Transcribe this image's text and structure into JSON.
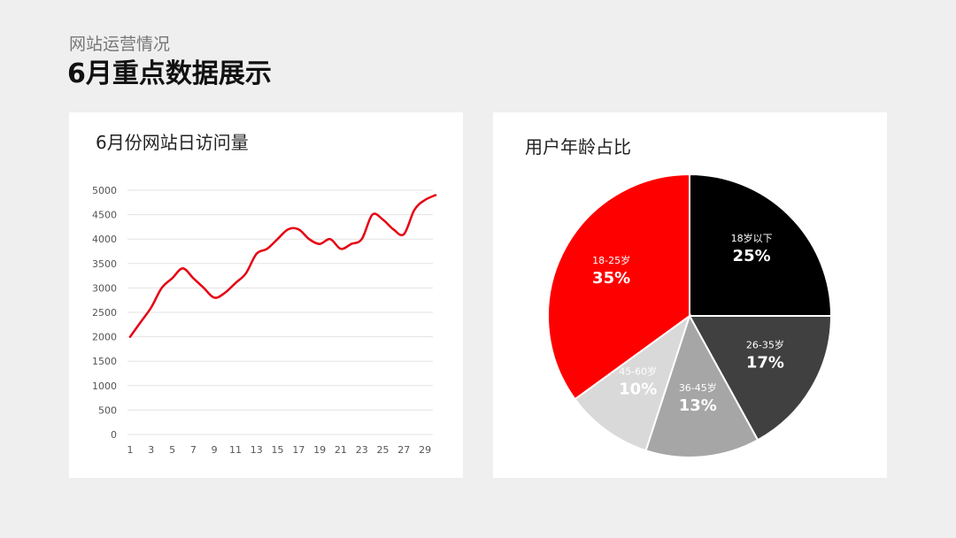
{
  "header": {
    "subtitle": "网站运营情况",
    "title": "6月重点数据展示"
  },
  "line_card": {
    "title": "6月份网站日访问量"
  },
  "pie_card": {
    "title": "用户年龄占比"
  },
  "colors": {
    "line": "#e60012",
    "grid": "#e3e3e3",
    "pie_edge": "#ffffff"
  },
  "chart_data": [
    {
      "type": "line",
      "title": "6月份网站日访问量",
      "xlabel": "",
      "ylabel": "",
      "x": [
        1,
        2,
        3,
        4,
        5,
        6,
        7,
        8,
        9,
        10,
        11,
        12,
        13,
        14,
        15,
        16,
        17,
        18,
        19,
        20,
        21,
        22,
        23,
        24,
        25,
        26,
        27,
        28,
        29,
        30
      ],
      "x_tick_labels": [
        "1",
        "3",
        "5",
        "7",
        "9",
        "11",
        "13",
        "15",
        "17",
        "19",
        "21",
        "23",
        "25",
        "27",
        "29"
      ],
      "y_tick_labels": [
        "0",
        "500",
        "1000",
        "1500",
        "2000",
        "2500",
        "3000",
        "3500",
        "4000",
        "4500",
        "5000"
      ],
      "ylim": [
        0,
        5000
      ],
      "grid": true,
      "series": [
        {
          "values": [
            2000,
            2300,
            2600,
            3000,
            3200,
            3400,
            3200,
            3000,
            2800,
            2900,
            3100,
            3300,
            3700,
            3800,
            4000,
            4200,
            4200,
            4000,
            3900,
            4000,
            3800,
            3900,
            4000,
            4500,
            4400,
            4200,
            4100,
            4600,
            4800,
            4900
          ]
        }
      ]
    },
    {
      "type": "pie",
      "title": "用户年龄占比",
      "slices": [
        {
          "label": "18岁以下",
          "value": 25,
          "display": "25%",
          "color": "#000000",
          "text_color": "#ffffff"
        },
        {
          "label": "26-35岁",
          "value": 17,
          "display": "17%",
          "color": "#404040",
          "text_color": "#ffffff"
        },
        {
          "label": "36-45岁",
          "value": 13,
          "display": "13%",
          "color": "#a6a6a6",
          "text_color": "#ffffff"
        },
        {
          "label": "45-60岁",
          "value": 10,
          "display": "10%",
          "color": "#d9d9d9",
          "text_color": "#ffffff"
        },
        {
          "label": "18-25岁",
          "value": 35,
          "display": "35%",
          "color": "#ff0000",
          "text_color": "#ffffff"
        }
      ]
    }
  ]
}
